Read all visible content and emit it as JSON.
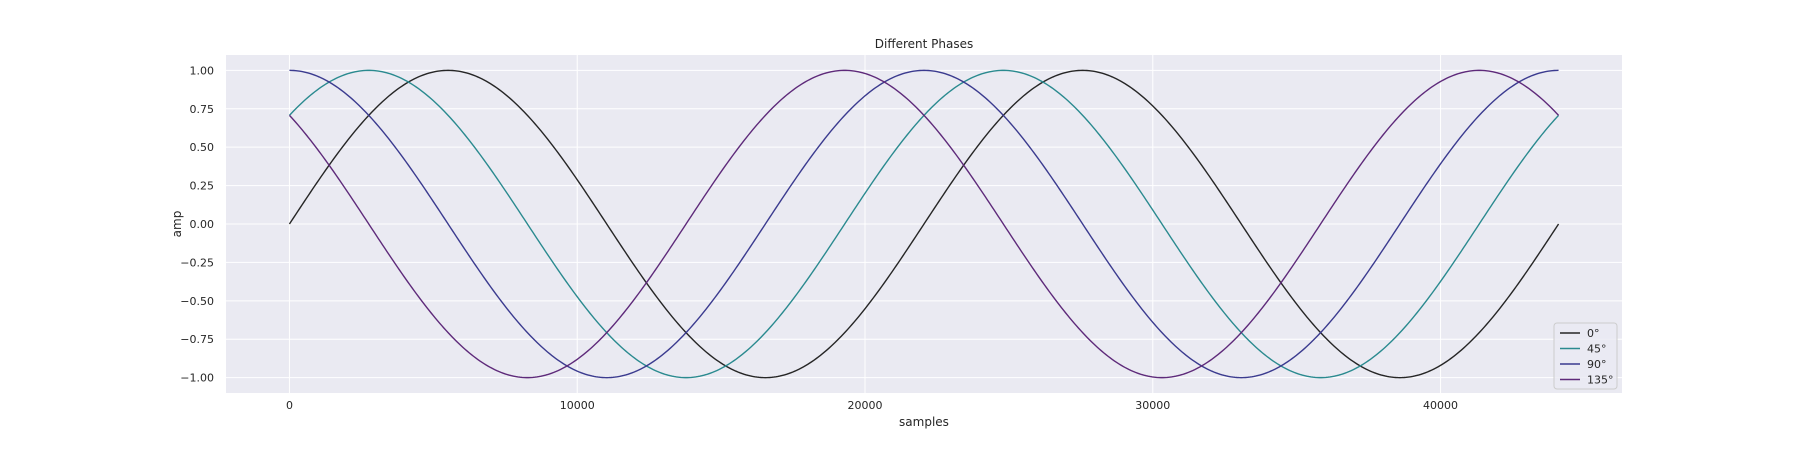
{
  "chart_data": {
    "type": "line",
    "title": "Different Phases",
    "xlabel": "samples",
    "ylabel": "amp",
    "xlim": [
      -2205,
      46305
    ],
    "ylim": [
      -1.1,
      1.1
    ],
    "xticks": [
      0,
      10000,
      20000,
      30000,
      40000
    ],
    "xtick_labels": [
      "0",
      "10000",
      "20000",
      "30000",
      "40000"
    ],
    "yticks": [
      1.0,
      0.75,
      0.5,
      0.25,
      0.0,
      -0.25,
      -0.5,
      -0.75,
      -1.0
    ],
    "ytick_labels": [
      "1.00",
      "0.75",
      "0.50",
      "0.25",
      "0.00",
      "−0.25",
      "−0.50",
      "−0.75",
      "−1.00"
    ],
    "grid": true,
    "legend_position": "lower right",
    "x_range": [
      0,
      44100
    ],
    "period_samples": 22050,
    "series": [
      {
        "name": "0°",
        "phase_deg": 0,
        "color": "#262626"
      },
      {
        "name": "45°",
        "phase_deg": 45,
        "color": "#2a8a8f"
      },
      {
        "name": "90°",
        "phase_deg": 90,
        "color": "#3b3b8f"
      },
      {
        "name": "135°",
        "phase_deg": 135,
        "color": "#5e2a7a"
      }
    ],
    "background_color": "#eaeaf2",
    "grid_color": "#ffffff"
  }
}
